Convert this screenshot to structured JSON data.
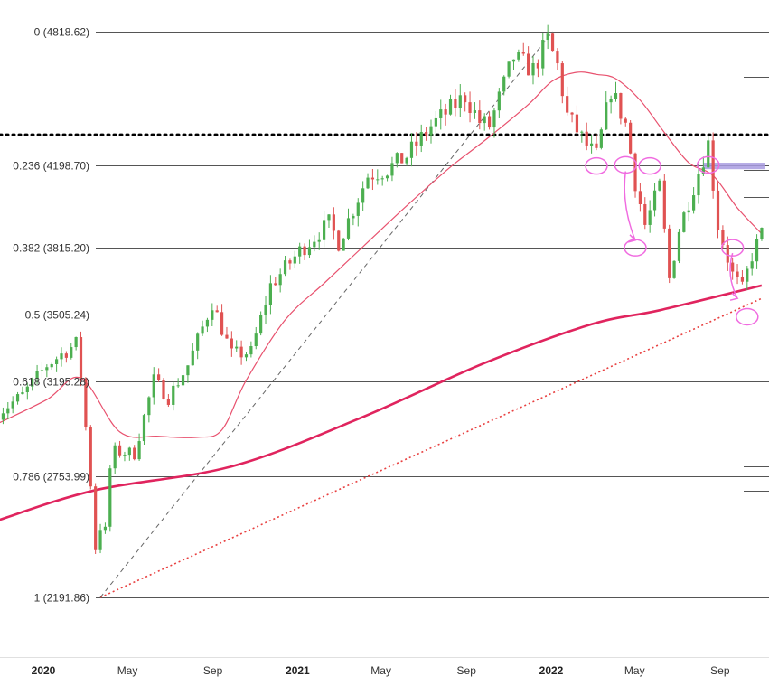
{
  "chart_data": {
    "type": "candlestick",
    "title": "",
    "xlabel": "",
    "ylabel": "",
    "ylim": [
      2040,
      4900
    ],
    "x_range": [
      "2019-10-28",
      "2022-10-31"
    ],
    "grid": false,
    "colors": {
      "up": "#4caf50",
      "down": "#e05252",
      "fib_line": "#555555",
      "ma_thin": "#e8516e",
      "ma_thick": "#e0245e",
      "trend_dotted": "#e84040",
      "fib_diagonal": "#666666",
      "resistance_dotted": "#000000",
      "annotation": "#f06be0",
      "highlight_band": "#a89be0"
    },
    "fib_levels": [
      {
        "label": "0 (4818.62)",
        "value": 4818.62
      },
      {
        "label": "0.236 (4198.70)",
        "value": 4198.7
      },
      {
        "label": "0.382 (3815.20)",
        "value": 3815.2
      },
      {
        "label": "0.5 (3505.24)",
        "value": 3505.24
      },
      {
        "label": "0.618 (3195.28)",
        "value": 3195.28
      },
      {
        "label": "0.786 (2753.99)",
        "value": 2753.99
      },
      {
        "label": "1 (2191.86)",
        "value": 2191.86
      }
    ],
    "resistance_level": 4340,
    "x_ticks": [
      {
        "label": "2020",
        "date": "2020-01-01",
        "bold": true
      },
      {
        "label": "May",
        "date": "2020-05-01",
        "bold": false
      },
      {
        "label": "Sep",
        "date": "2020-09-01",
        "bold": false
      },
      {
        "label": "2021",
        "date": "2021-01-01",
        "bold": true
      },
      {
        "label": "May",
        "date": "2021-05-01",
        "bold": false
      },
      {
        "label": "Sep",
        "date": "2021-09-01",
        "bold": false
      },
      {
        "label": "2022",
        "date": "2022-01-01",
        "bold": true
      },
      {
        "label": "May",
        "date": "2022-05-01",
        "bold": false
      },
      {
        "label": "Sep",
        "date": "2022-09-01",
        "bold": false
      }
    ],
    "anchors": [
      [
        "2019-10-28",
        3050
      ],
      [
        "2019-12-02",
        3130
      ],
      [
        "2020-01-06",
        3270
      ],
      [
        "2020-02-17",
        3370
      ],
      [
        "2020-02-24",
        3220
      ],
      [
        "2020-03-02",
        2980
      ],
      [
        "2020-03-09",
        2720
      ],
      [
        "2020-03-16",
        2420
      ],
      [
        "2020-03-23",
        2520
      ],
      [
        "2020-03-30",
        2500
      ],
      [
        "2020-04-06",
        2790
      ],
      [
        "2020-04-13",
        2870
      ],
      [
        "2020-05-11",
        2860
      ],
      [
        "2020-06-08",
        3200
      ],
      [
        "2020-06-29",
        3120
      ],
      [
        "2020-07-27",
        3270
      ],
      [
        "2020-08-31",
        3560
      ],
      [
        "2020-09-28",
        3320
      ],
      [
        "2020-10-26",
        3330
      ],
      [
        "2020-11-23",
        3640
      ],
      [
        "2021-01-04",
        3800
      ],
      [
        "2021-02-15",
        3930
      ],
      [
        "2021-03-01",
        3840
      ],
      [
        "2021-04-12",
        4150
      ],
      [
        "2021-05-10",
        4180
      ],
      [
        "2021-06-07",
        4240
      ],
      [
        "2021-07-12",
        4380
      ],
      [
        "2021-08-30",
        4520
      ],
      [
        "2021-09-20",
        4400
      ],
      [
        "2021-10-04",
        4380
      ],
      [
        "2021-11-08",
        4700
      ],
      [
        "2021-12-06",
        4640
      ],
      [
        "2021-12-27",
        4780
      ],
      [
        "2022-01-10",
        4660
      ],
      [
        "2022-01-24",
        4430
      ],
      [
        "2022-02-21",
        4290
      ],
      [
        "2022-03-07",
        4240
      ],
      [
        "2022-03-28",
        4550
      ],
      [
        "2022-04-18",
        4390
      ],
      [
        "2022-05-02",
        4120
      ],
      [
        "2022-05-16",
        3920
      ],
      [
        "2022-06-06",
        4100
      ],
      [
        "2022-06-20",
        3670
      ],
      [
        "2022-07-04",
        3900
      ],
      [
        "2022-08-15",
        4300
      ],
      [
        "2022-08-29",
        3920
      ],
      [
        "2022-09-19",
        3690
      ],
      [
        "2022-10-03",
        3620
      ],
      [
        "2022-10-17",
        3780
      ],
      [
        "2022-10-31",
        3880
      ]
    ],
    "ma_thin": [
      [
        "2019-10-28",
        3000
      ],
      [
        "2020-01-06",
        3110
      ],
      [
        "2020-02-24",
        3210
      ],
      [
        "2020-04-20",
        2960
      ],
      [
        "2020-06-15",
        2940
      ],
      [
        "2020-08-10",
        2935
      ],
      [
        "2020-09-14",
        2970
      ],
      [
        "2020-10-19",
        3200
      ],
      [
        "2020-12-14",
        3480
      ],
      [
        "2021-02-08",
        3650
      ],
      [
        "2021-04-05",
        3820
      ],
      [
        "2021-06-07",
        4010
      ],
      [
        "2021-08-09",
        4190
      ],
      [
        "2021-10-04",
        4330
      ],
      [
        "2021-11-29",
        4480
      ],
      [
        "2022-01-03",
        4590
      ],
      [
        "2022-02-07",
        4630
      ],
      [
        "2022-03-07",
        4620
      ],
      [
        "2022-04-04",
        4600
      ],
      [
        "2022-05-09",
        4500
      ],
      [
        "2022-06-13",
        4350
      ],
      [
        "2022-07-18",
        4210
      ],
      [
        "2022-08-22",
        4150
      ],
      [
        "2022-09-26",
        4000
      ],
      [
        "2022-10-31",
        3880
      ]
    ],
    "ma_thick": [
      [
        "2019-10-28",
        2550
      ],
      [
        "2020-03-16",
        2690
      ],
      [
        "2020-09-28",
        2800
      ],
      [
        "2021-03-29",
        3020
      ],
      [
        "2021-09-27",
        3280
      ],
      [
        "2022-02-28",
        3460
      ],
      [
        "2022-06-06",
        3525
      ],
      [
        "2022-10-31",
        3640
      ]
    ],
    "trend_dotted": {
      "from": [
        "2020-03-23",
        2191.86
      ],
      "to": [
        "2022-10-31",
        3580
      ]
    },
    "fib_diagonal": {
      "from": [
        "2020-03-23",
        2191.86
      ],
      "to": [
        "2022-01-03",
        4818.62
      ]
    },
    "highlight_band": {
      "from": "2022-08-08",
      "to": "2022-10-31",
      "y1": 4180,
      "y2": 4210
    },
    "annotations": {
      "circles": [
        {
          "date": "2022-03-07",
          "value": 4195
        },
        {
          "date": "2022-04-18",
          "value": 4200
        },
        {
          "date": "2022-05-23",
          "value": 4195
        },
        {
          "date": "2022-08-15",
          "value": 4200
        },
        {
          "date": "2022-05-02",
          "value": 3815
        },
        {
          "date": "2022-09-19",
          "value": 3815
        },
        {
          "date": "2022-10-10",
          "value": 3495
        }
      ],
      "arrows": [
        {
          "from": [
            "2022-04-18",
            4170
          ],
          "to": [
            "2022-05-02",
            3850
          ]
        },
        {
          "from": [
            "2022-09-19",
            3790
          ],
          "to": [
            "2022-09-26",
            3580
          ]
        }
      ]
    }
  }
}
